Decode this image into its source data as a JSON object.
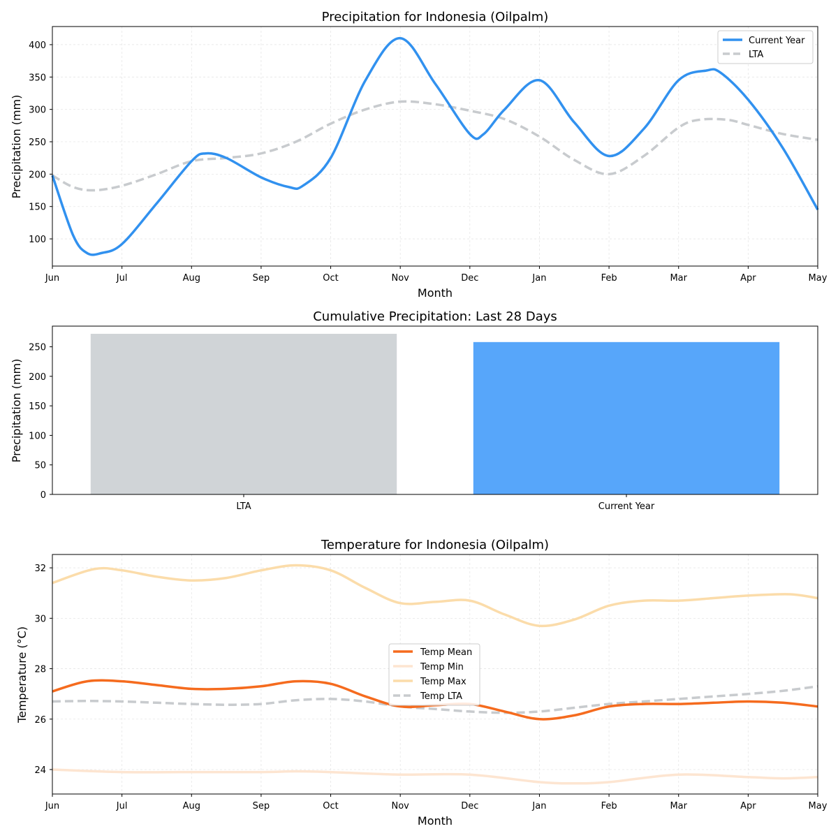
{
  "chart_data": [
    {
      "type": "line",
      "title": "Precipitation for Indonesia (Oilpalm)",
      "xlabel": "Month",
      "ylabel": "Precipitation (mm)",
      "categories": [
        "Jun",
        "Jul",
        "Aug",
        "Sep",
        "Oct",
        "Nov",
        "Dec",
        "Jan",
        "Feb",
        "Mar",
        "Apr",
        "May"
      ],
      "ylim": [
        58,
        428
      ],
      "yticks": [
        "100",
        "150",
        "200",
        "250",
        "300",
        "350",
        "400"
      ],
      "grid": true,
      "legend_position": "top-right",
      "series": [
        {
          "name": "Current Year",
          "color": "#3191ef",
          "style": "solid",
          "x": [
            0,
            0.3,
            0.5,
            0.7,
            1,
            1.5,
            2,
            2.2,
            2.5,
            3,
            3.4,
            3.6,
            4,
            4.5,
            5,
            5.5,
            6,
            6.2,
            6.5,
            7,
            7.5,
            8,
            8.5,
            9,
            9.4,
            9.6,
            10,
            10.5,
            11
          ],
          "values": [
            198,
            105,
            78,
            78,
            92,
            155,
            220,
            232,
            225,
            195,
            180,
            182,
            225,
            345,
            410,
            340,
            262,
            262,
            300,
            345,
            280,
            228,
            270,
            345,
            360,
            357,
            315,
            240,
            145
          ]
        },
        {
          "name": "LTA",
          "color": "#c8cbce",
          "style": "dashed",
          "x": [
            0,
            0.3,
            0.6,
            1,
            1.5,
            2,
            2.5,
            3,
            3.5,
            4,
            4.5,
            5,
            5.5,
            6,
            6.5,
            7,
            7.5,
            8,
            8.5,
            9,
            9.3,
            9.7,
            10,
            10.5,
            11
          ],
          "values": [
            198,
            180,
            175,
            182,
            200,
            220,
            225,
            232,
            250,
            278,
            300,
            312,
            308,
            298,
            285,
            258,
            222,
            200,
            228,
            272,
            284,
            284,
            276,
            262,
            253
          ]
        }
      ]
    },
    {
      "type": "bar",
      "title": "Cumulative Precipitation: Last 28 Days",
      "ylabel": "Precipitation (mm)",
      "categories": [
        "LTA",
        "Current Year"
      ],
      "values": [
        272,
        258
      ],
      "colors": [
        "#d0d4d7",
        "#57a6fa"
      ],
      "ylim": [
        0,
        285
      ],
      "yticks": [
        "0",
        "50",
        "100",
        "150",
        "200",
        "250"
      ],
      "grid": false
    },
    {
      "type": "line",
      "title": "Temperature for Indonesia (Oilpalm)",
      "xlabel": "Month",
      "ylabel": "Temperature (°C)",
      "categories": [
        "Jun",
        "Jul",
        "Aug",
        "Sep",
        "Oct",
        "Nov",
        "Dec",
        "Jan",
        "Feb",
        "Mar",
        "Apr",
        "May"
      ],
      "ylim": [
        23.03,
        32.53
      ],
      "yticks": [
        "24",
        "26",
        "28",
        "30",
        "32"
      ],
      "grid": true,
      "legend_position": "center",
      "series": [
        {
          "name": "Temp Mean",
          "color": "#f56b1e",
          "style": "solid",
          "x": [
            0,
            0.5,
            1,
            1.5,
            2,
            2.5,
            3,
            3.5,
            4,
            4.5,
            5,
            5.5,
            6,
            6.5,
            7,
            7.5,
            8,
            8.5,
            9,
            9.5,
            10,
            10.5,
            11
          ],
          "values": [
            27.1,
            27.5,
            27.5,
            27.35,
            27.2,
            27.2,
            27.3,
            27.5,
            27.4,
            26.9,
            26.5,
            26.55,
            26.6,
            26.3,
            26.0,
            26.15,
            26.5,
            26.6,
            26.6,
            26.65,
            26.7,
            26.65,
            26.5
          ]
        },
        {
          "name": "Temp Min",
          "color": "#fde5d1",
          "style": "solid",
          "x": [
            0,
            1,
            2,
            3,
            3.5,
            4,
            5,
            6,
            7,
            7.5,
            8,
            9,
            10,
            10.5,
            11
          ],
          "values": [
            24.0,
            23.9,
            23.9,
            23.9,
            23.93,
            23.9,
            23.8,
            23.8,
            23.5,
            23.45,
            23.5,
            23.8,
            23.7,
            23.65,
            23.7
          ]
        },
        {
          "name": "Temp Max",
          "color": "#fbdcaa",
          "style": "solid",
          "x": [
            0,
            0.6,
            1,
            1.5,
            2,
            2.5,
            3,
            3.5,
            4,
            4.5,
            5,
            5.5,
            6,
            6.5,
            7,
            7.5,
            8,
            8.5,
            9,
            9.5,
            10,
            10.6,
            11
          ],
          "values": [
            31.4,
            31.95,
            31.9,
            31.65,
            31.5,
            31.6,
            31.9,
            32.1,
            31.9,
            31.2,
            30.6,
            30.65,
            30.7,
            30.15,
            29.7,
            29.95,
            30.5,
            30.7,
            30.7,
            30.8,
            30.9,
            30.95,
            30.8
          ]
        },
        {
          "name": "Temp LTA",
          "color": "#c8cbce",
          "style": "dashed",
          "x": [
            0,
            0.5,
            1,
            1.5,
            2,
            2.5,
            3,
            3.5,
            4,
            4.5,
            5,
            5.5,
            6,
            6.5,
            7,
            7.5,
            8,
            8.5,
            9,
            9.5,
            10,
            10.5,
            11
          ],
          "values": [
            26.7,
            26.72,
            26.7,
            26.65,
            26.6,
            26.57,
            26.6,
            26.75,
            26.8,
            26.7,
            26.5,
            26.4,
            26.3,
            26.25,
            26.3,
            26.45,
            26.6,
            26.7,
            26.8,
            26.9,
            27.0,
            27.12,
            27.3
          ]
        }
      ]
    }
  ]
}
